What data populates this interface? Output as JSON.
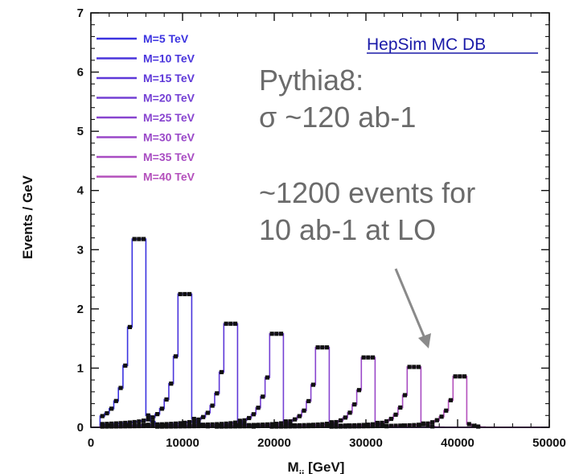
{
  "chart_data": {
    "type": "line",
    "title": "",
    "xlabel": "M",
    "xlabel_sub": "jj",
    "xlabel_unit": " [GeV]",
    "ylabel": "Events / GeV",
    "xlim": [
      0,
      50000
    ],
    "ylim": [
      0,
      7
    ],
    "xticks": [
      0,
      10000,
      20000,
      30000,
      40000,
      50000
    ],
    "yticks": [
      0,
      1,
      2,
      3,
      4,
      5,
      6,
      7
    ],
    "legend_position": "top-left",
    "source_label": "HepSim MC DB",
    "annotations": [
      "Pythia8:",
      "σ ~120 ab-1",
      "~1200 events for",
      "10 ab-1 at LO"
    ],
    "series": [
      {
        "name": "M=5 TeV",
        "mass": 5000,
        "peak": 3.18,
        "color": "#3b33e0"
      },
      {
        "name": "M=10 TeV",
        "mass": 10000,
        "peak": 2.25,
        "color": "#4a35dc"
      },
      {
        "name": "M=15 TeV",
        "mass": 15000,
        "peak": 1.75,
        "color": "#5e38d8"
      },
      {
        "name": "M=20 TeV",
        "mass": 20000,
        "peak": 1.58,
        "color": "#7440d4"
      },
      {
        "name": "M=25 TeV",
        "mass": 25000,
        "peak": 1.35,
        "color": "#8844cf"
      },
      {
        "name": "M=30 TeV",
        "mass": 30000,
        "peak": 1.18,
        "color": "#9a48c8"
      },
      {
        "name": "M=35 TeV",
        "mass": 35000,
        "peak": 1.02,
        "color": "#a84cc2"
      },
      {
        "name": "M=40 TeV",
        "mass": 40000,
        "peak": 0.86,
        "color": "#b450bc"
      }
    ]
  }
}
